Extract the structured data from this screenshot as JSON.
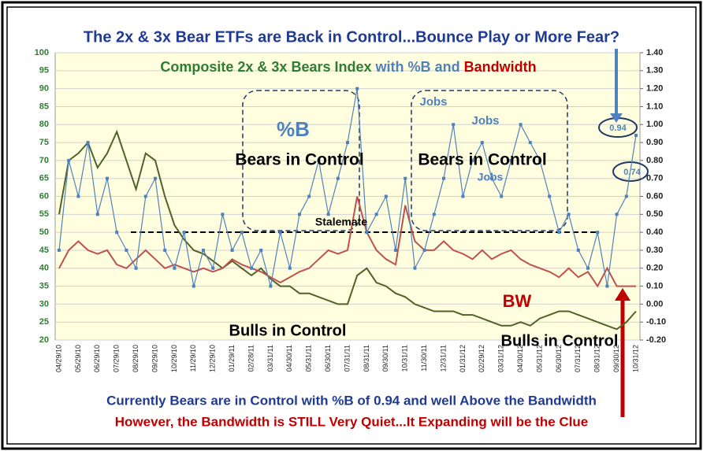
{
  "chart_data": {
    "type": "line",
    "title": "The 2x & 3x Bear ETFs are Back in Control...Bounce Play or More Fear?",
    "subtitle_words": [
      "with",
      "and"
    ],
    "categories": [
      "04/29/10",
      null,
      "05/29/10",
      null,
      "06/29/10",
      null,
      "07/29/10",
      null,
      "08/29/10",
      null,
      "09/29/10",
      null,
      "10/29/10",
      null,
      "11/29/10",
      null,
      "12/29/10",
      null,
      "01/29/11",
      null,
      "02/28/11",
      null,
      "03/31/11",
      null,
      "04/30/11",
      null,
      "05/31/11",
      null,
      "06/30/11",
      null,
      "07/31/11",
      null,
      "08/31/11",
      null,
      "09/30/11",
      null,
      "10/31/11",
      null,
      "11/30/11",
      null,
      "12/31/11",
      null,
      "01/31/12",
      null,
      "02/29/12",
      null,
      "03/31/12",
      null,
      "04/30/12",
      null,
      "05/31/12",
      null,
      "06/30/12",
      null,
      "07/31/12",
      null,
      "08/31/12",
      null,
      "09/30/12",
      null,
      "10/31/12"
    ],
    "series": [
      {
        "name": "Composite 2x & 3x Bears Index",
        "color": "#4f6228",
        "axis": "y",
        "values": [
          55,
          70,
          72,
          75,
          68,
          72,
          78,
          70,
          62,
          72,
          70,
          60,
          52,
          48,
          45,
          44,
          42,
          40,
          42,
          40,
          38,
          40,
          37,
          35,
          35,
          33,
          33,
          32,
          31,
          30,
          30,
          38,
          40,
          36,
          35,
          33,
          32,
          30,
          29,
          28,
          28,
          28,
          27,
          27,
          26,
          25,
          24,
          24,
          25,
          24,
          26,
          27,
          28,
          28,
          27,
          26,
          25,
          24,
          23,
          25,
          28
        ]
      },
      {
        "name": "%B",
        "color": "#4f81bd",
        "axis": "y2",
        "values": [
          0.3,
          0.8,
          0.6,
          0.9,
          0.5,
          0.7,
          0.4,
          0.3,
          0.2,
          0.6,
          0.7,
          0.3,
          0.2,
          0.4,
          0.1,
          0.3,
          0.2,
          0.5,
          0.3,
          0.4,
          0.2,
          0.3,
          0.1,
          0.4,
          0.2,
          0.5,
          0.6,
          0.8,
          0.5,
          0.7,
          0.9,
          1.2,
          0.4,
          0.5,
          0.6,
          0.3,
          0.7,
          0.2,
          0.3,
          0.5,
          0.7,
          1.0,
          0.6,
          0.8,
          0.9,
          0.7,
          0.6,
          0.8,
          1.0,
          0.9,
          0.8,
          0.6,
          0.4,
          0.5,
          0.3,
          0.2,
          0.4,
          0.1,
          0.5,
          0.6,
          0.94
        ]
      },
      {
        "name": "Bandwidth",
        "color": "#c0504d",
        "axis": "y2",
        "values": [
          0.2,
          0.3,
          0.35,
          0.3,
          0.28,
          0.3,
          0.22,
          0.2,
          0.25,
          0.3,
          0.25,
          0.2,
          0.22,
          0.2,
          0.18,
          0.2,
          0.18,
          0.2,
          0.25,
          0.22,
          0.2,
          0.18,
          0.15,
          0.12,
          0.15,
          0.18,
          0.2,
          0.25,
          0.3,
          0.28,
          0.3,
          0.6,
          0.4,
          0.3,
          0.25,
          0.22,
          0.55,
          0.35,
          0.3,
          0.3,
          0.35,
          0.3,
          0.28,
          0.25,
          0.3,
          0.25,
          0.28,
          0.3,
          0.25,
          0.22,
          0.2,
          0.18,
          0.15,
          0.2,
          0.15,
          0.18,
          0.1,
          0.2,
          0.1,
          0.1,
          0.1
        ]
      }
    ],
    "ylim": [
      20,
      100
    ],
    "yticks": [
      20,
      25,
      30,
      35,
      40,
      45,
      50,
      55,
      60,
      65,
      70,
      75,
      80,
      85,
      90,
      95,
      100
    ],
    "y2lim": [
      -0.2,
      1.4
    ],
    "y2ticks": [
      {
        "value": -0.2,
        "label": "-0.20"
      },
      {
        "value": -0.1,
        "label": "-0.10"
      },
      {
        "value": 0,
        "label": "0.00"
      },
      {
        "value": 0.1,
        "label": "0.10"
      },
      {
        "value": 0.2,
        "label": "0.20"
      },
      {
        "value": 0.3,
        "label": "0.30"
      },
      {
        "value": 0.4,
        "label": "0.40"
      },
      {
        "value": 0.5,
        "label": "0.50"
      },
      {
        "value": 0.6,
        "label": "0.60"
      },
      {
        "value": 0.7,
        "label": "0.70"
      },
      {
        "value": 0.8,
        "label": "0.80"
      },
      {
        "value": 0.9,
        "label": "0.90"
      },
      {
        "value": 1.0,
        "label": "1.00"
      },
      {
        "value": 1.1,
        "label": "1.10"
      },
      {
        "value": 1.2,
        "label": "1.20"
      },
      {
        "value": 1.3,
        "label": "1.30"
      },
      {
        "value": 1.4,
        "label": "1.40"
      }
    ],
    "grid": true,
    "annotations": [
      "%B",
      "Bears in Control",
      "Bears in Control",
      "Jobs",
      "Jobs",
      "Jobs",
      "Stalemate",
      "Bulls in Control",
      "Bulls in Control",
      "BW",
      "0.94",
      "0.74"
    ],
    "footer": [
      "Currently Bears are in Control with %B of 0.94 and well Above the Bandwidth",
      "However, the Bandwidth is STILL Very Quiet...It Expanding will be the Clue"
    ]
  }
}
